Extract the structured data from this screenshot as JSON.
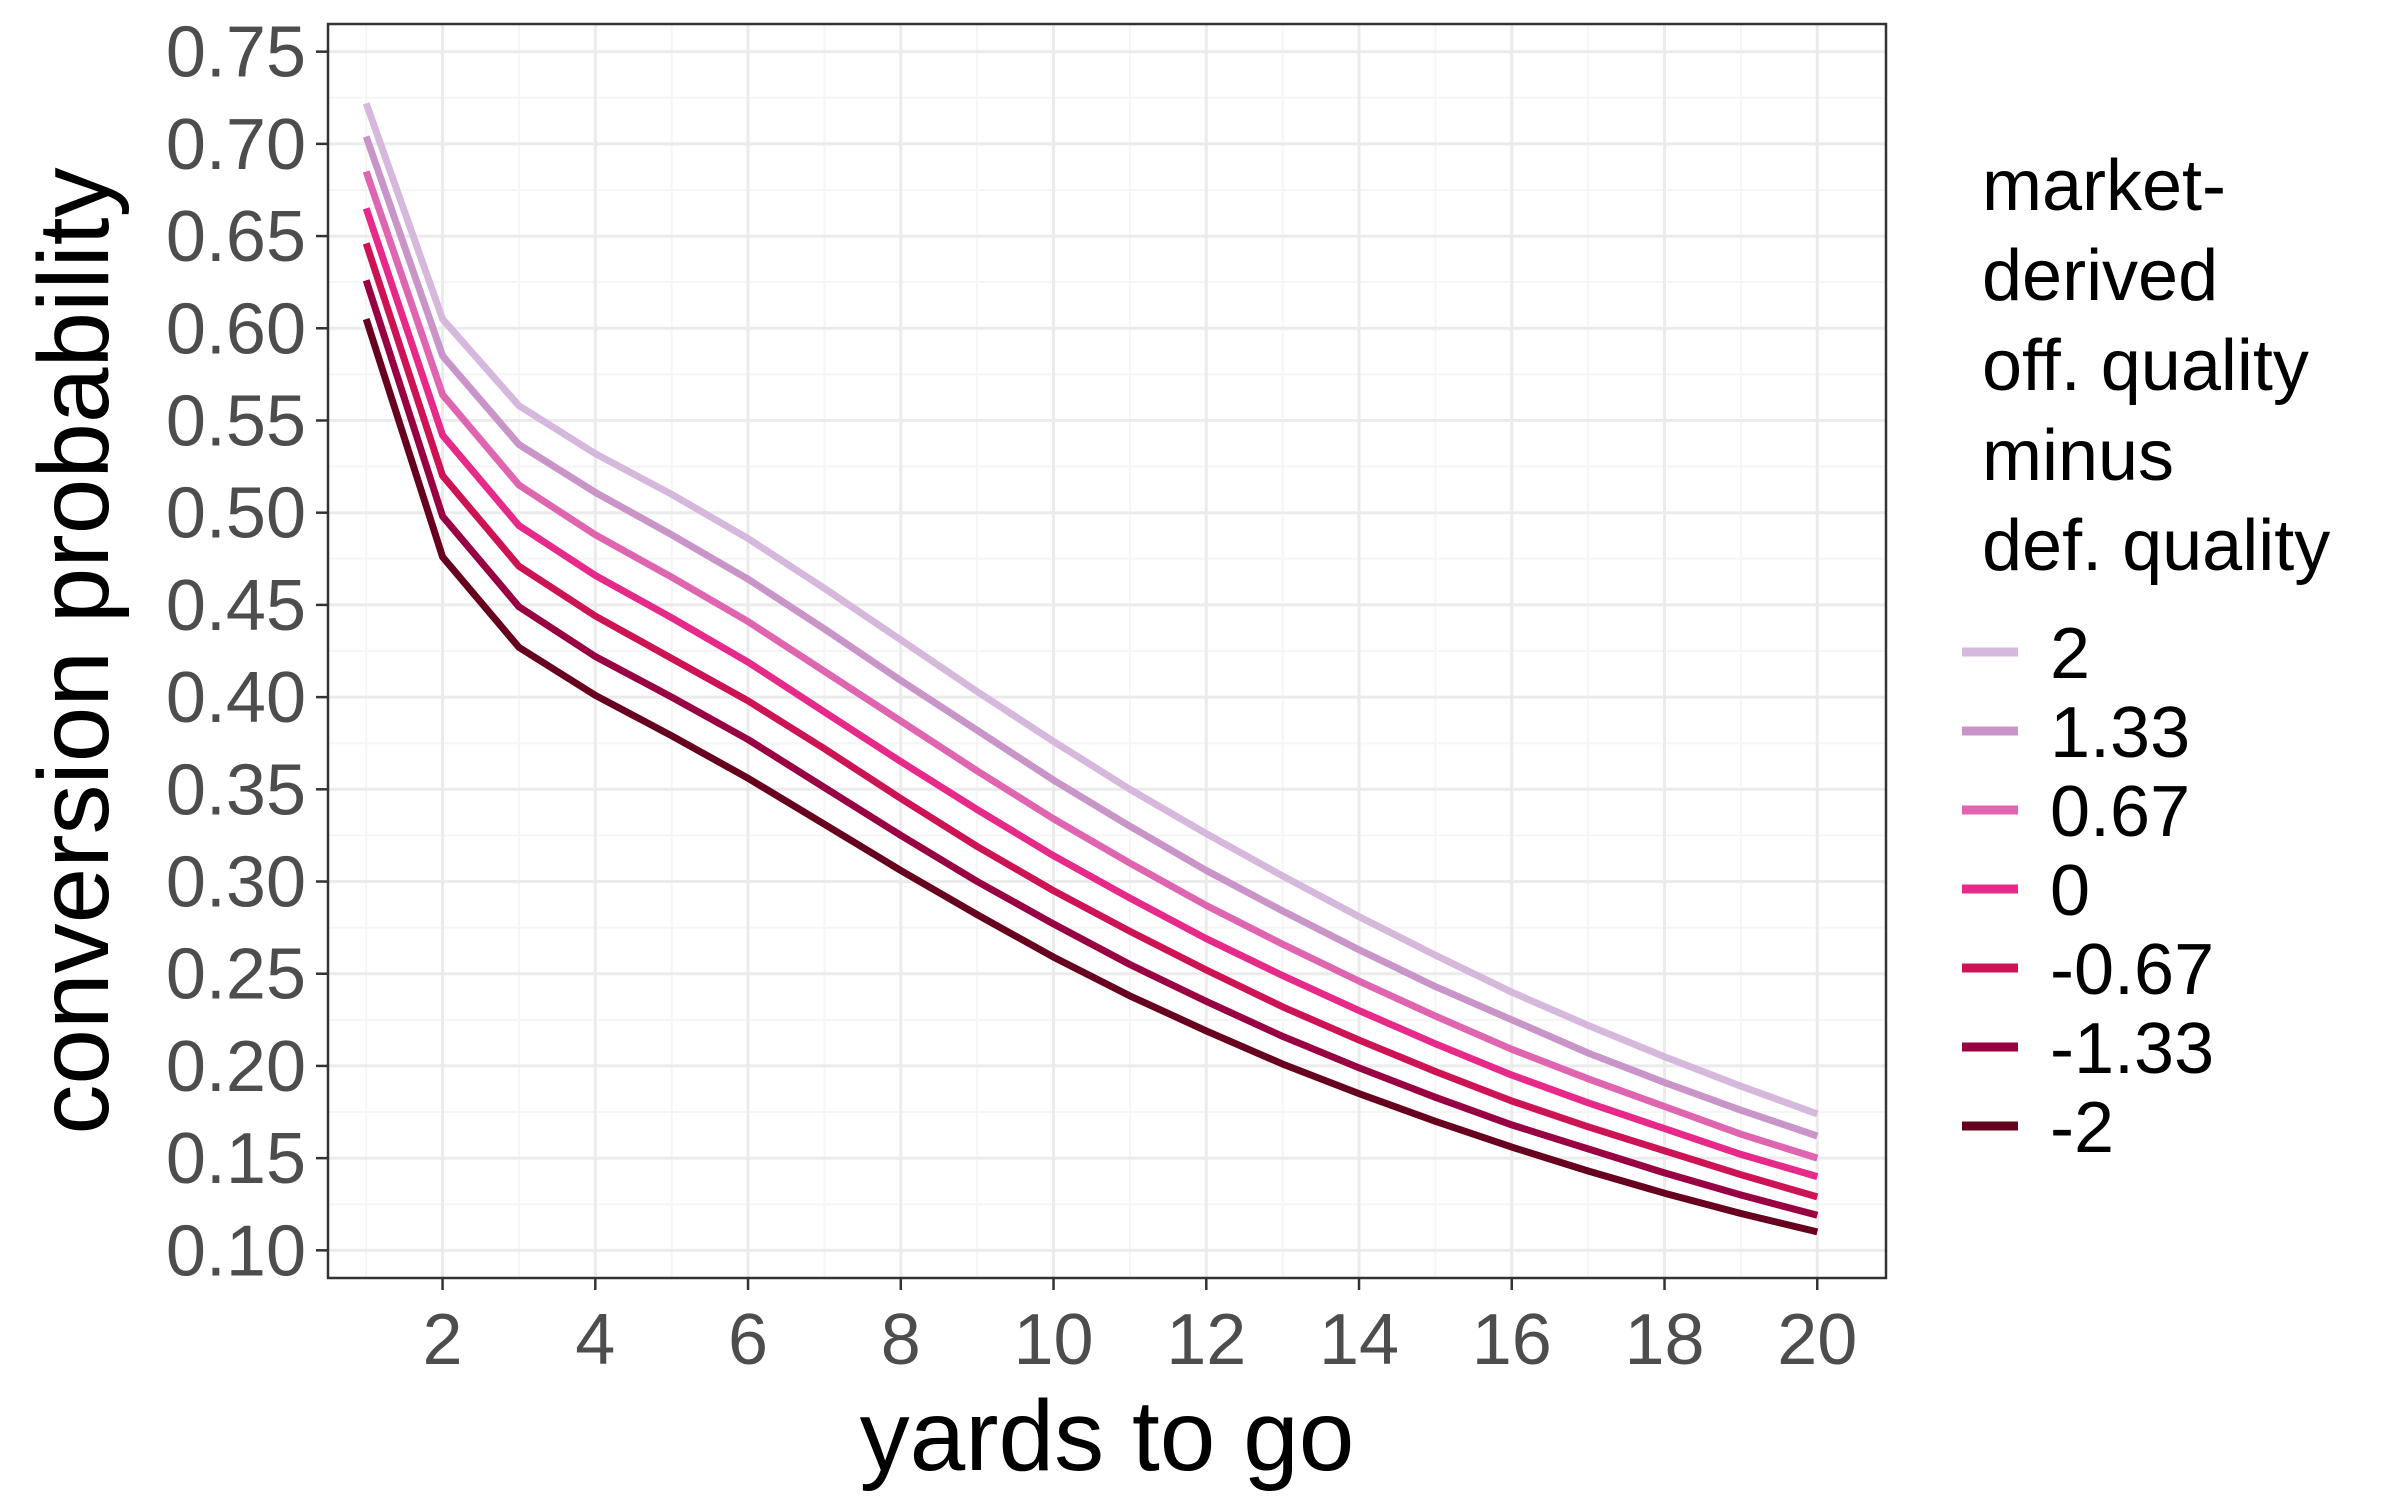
{
  "chart_data": {
    "type": "line",
    "xlabel": "yards to go",
    "ylabel": "conversion probability",
    "xlim": [
      0.5,
      20.9
    ],
    "ylim": [
      0.085,
      0.765
    ],
    "x_ticks": [
      2,
      4,
      6,
      8,
      10,
      12,
      14,
      16,
      18,
      20
    ],
    "x_tick_labels": [
      "2",
      "4",
      "6",
      "8",
      "10",
      "12",
      "14",
      "16",
      "18",
      "20"
    ],
    "y_ticks": [
      0.1,
      0.15,
      0.2,
      0.25,
      0.3,
      0.35,
      0.4,
      0.45,
      0.5,
      0.55,
      0.6,
      0.65,
      0.7,
      0.75
    ],
    "y_tick_labels": [
      "0.10",
      "0.15",
      "0.20",
      "0.25",
      "0.30",
      "0.35",
      "0.40",
      "0.45",
      "0.50",
      "0.55",
      "0.60",
      "0.65",
      "0.70",
      "0.75"
    ],
    "grid": true,
    "legend": {
      "title_lines": [
        "market-",
        "derived",
        "off. quality",
        "minus",
        "def. quality"
      ],
      "placement": "right"
    },
    "x": [
      1,
      2,
      3,
      4,
      5,
      6,
      7,
      8,
      9,
      10,
      11,
      12,
      13,
      14,
      15,
      16,
      17,
      18,
      19,
      20
    ],
    "series": [
      {
        "name": "2",
        "color": "#d6b8dd",
        "values": [
          0.722,
          0.605,
          0.558,
          0.532,
          0.51,
          0.486,
          0.459,
          0.431,
          0.403,
          0.376,
          0.35,
          0.326,
          0.303,
          0.281,
          0.26,
          0.24,
          0.222,
          0.205,
          0.189,
          0.174
        ]
      },
      {
        "name": "1.33",
        "color": "#c994c7",
        "values": [
          0.704,
          0.585,
          0.537,
          0.511,
          0.488,
          0.464,
          0.437,
          0.409,
          0.382,
          0.355,
          0.33,
          0.306,
          0.284,
          0.263,
          0.243,
          0.225,
          0.207,
          0.191,
          0.176,
          0.162
        ]
      },
      {
        "name": "0.67",
        "color": "#df65b0",
        "values": [
          0.685,
          0.564,
          0.515,
          0.488,
          0.465,
          0.441,
          0.414,
          0.387,
          0.36,
          0.334,
          0.31,
          0.287,
          0.266,
          0.246,
          0.227,
          0.209,
          0.193,
          0.178,
          0.163,
          0.15
        ]
      },
      {
        "name": "0",
        "color": "#e7298a",
        "values": [
          0.665,
          0.542,
          0.493,
          0.466,
          0.443,
          0.419,
          0.392,
          0.365,
          0.339,
          0.314,
          0.291,
          0.269,
          0.249,
          0.23,
          0.212,
          0.195,
          0.18,
          0.166,
          0.152,
          0.14
        ]
      },
      {
        "name": "-0.67",
        "color": "#ce1256",
        "values": [
          0.646,
          0.52,
          0.471,
          0.444,
          0.421,
          0.398,
          0.372,
          0.345,
          0.319,
          0.295,
          0.273,
          0.252,
          0.232,
          0.214,
          0.197,
          0.181,
          0.167,
          0.154,
          0.141,
          0.129
        ]
      },
      {
        "name": "-1.33",
        "color": "#980043",
        "values": [
          0.626,
          0.498,
          0.449,
          0.422,
          0.4,
          0.377,
          0.351,
          0.325,
          0.3,
          0.277,
          0.255,
          0.235,
          0.216,
          0.199,
          0.183,
          0.168,
          0.155,
          0.142,
          0.13,
          0.119
        ]
      },
      {
        "name": "-2",
        "color": "#67001f",
        "values": [
          0.605,
          0.476,
          0.427,
          0.401,
          0.379,
          0.356,
          0.331,
          0.306,
          0.282,
          0.259,
          0.238,
          0.219,
          0.201,
          0.185,
          0.17,
          0.156,
          0.143,
          0.131,
          0.12,
          0.11
        ]
      }
    ]
  },
  "colors": {
    "panel_border": "#333333",
    "grid_major": "#ebebeb",
    "grid_minor": "#f5f5f5",
    "tick_text": "#4d4d4d"
  }
}
